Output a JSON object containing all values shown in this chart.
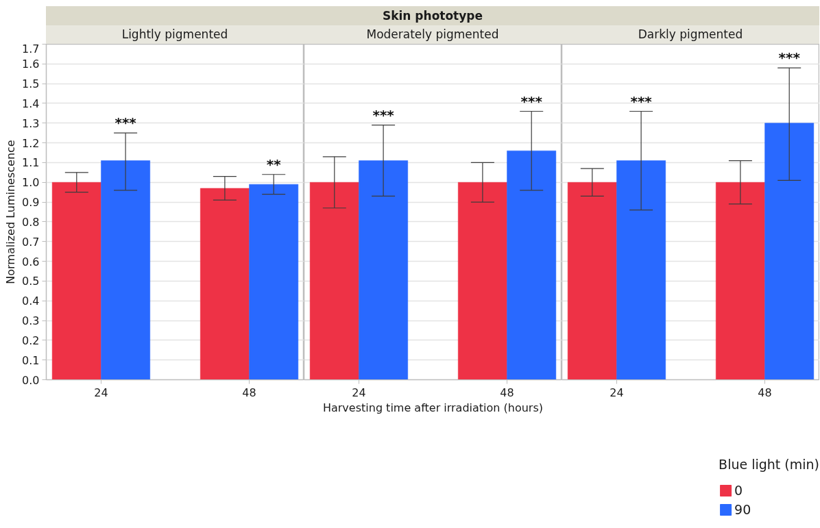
{
  "chart_data": [
    {
      "type": "bar",
      "subtitle": "Lightly pigmented",
      "ylabel": "Normalized Luminescence",
      "categories": [
        "24",
        "48"
      ],
      "series": [
        {
          "color": "#ee3246",
          "values": [
            1.0,
            0.97
          ],
          "errors": [
            [
              0.95,
              1.05
            ],
            [
              0.91,
              1.03
            ]
          ]
        },
        {
          "color": "#2969ff",
          "values": [
            1.11,
            0.99
          ],
          "errors": [
            [
              0.96,
              1.25
            ],
            [
              0.94,
              1.04
            ]
          ]
        }
      ],
      "ylim": [
        0,
        1.7
      ],
      "yticks": [
        {
          "value": 0,
          "label": "0.0"
        },
        0.1,
        0.2,
        0.3,
        0.4,
        0.5,
        0.6,
        0.7,
        0.8,
        0.9,
        {
          "value": 1,
          "label": "1.0"
        },
        1.1,
        1.2,
        1.3,
        1.4,
        1.5,
        1.6,
        1.7
      ],
      "grid": "y",
      "annotations": [
        "***",
        "**"
      ]
    },
    {
      "type": "bar",
      "title": "Skin phototype",
      "subtitle": "Moderately pigmented",
      "xlabel": "Harvesting time after irradiation (hours)",
      "categories": [
        "24",
        "48"
      ],
      "series": [
        {
          "color": "#ee3246",
          "values": [
            1.0,
            1.0
          ],
          "errors": [
            [
              0.87,
              1.13
            ],
            [
              0.9,
              1.1
            ]
          ]
        },
        {
          "color": "#2969ff",
          "values": [
            1.11,
            1.16
          ],
          "errors": [
            [
              0.93,
              1.29
            ],
            [
              0.96,
              1.36
            ]
          ]
        }
      ],
      "ylim": [
        0,
        1.7
      ],
      "yticks": [
        0,
        0.1,
        0.2,
        0.3,
        0.4,
        0.5,
        0.6,
        0.7,
        0.8,
        0.9,
        1,
        1.1,
        1.2,
        1.3,
        1.4,
        1.5,
        1.6,
        1.7
      ],
      "grid": "y",
      "tick_labels": "x",
      "annotations": [
        "***",
        "***"
      ]
    },
    {
      "type": "bar",
      "subtitle": "Darkly pigmented",
      "categories": [
        "24",
        "48"
      ],
      "series": [
        {
          "name": "0",
          "color": "#ee3246",
          "values": [
            1.0,
            1.0
          ],
          "errors": [
            [
              0.93,
              1.07
            ],
            [
              0.89,
              1.11
            ]
          ]
        },
        {
          "name": "90",
          "color": "#2969ff",
          "values": [
            1.11,
            1.3
          ],
          "errors": [
            [
              0.86,
              1.36
            ],
            [
              1.01,
              1.58
            ]
          ]
        }
      ],
      "ylim": [
        0,
        1.7
      ],
      "yticks": [
        0,
        0.1,
        0.2,
        0.3,
        0.4,
        0.5,
        0.6,
        0.7,
        0.8,
        0.9,
        1,
        1.1,
        1.2,
        1.3,
        1.4,
        1.5,
        1.6,
        1.7
      ],
      "grid": "y",
      "tick_labels": "x",
      "legend": "bottom right",
      "legend_title": "Blue light (min)",
      "annotations": [
        "***",
        "***"
      ]
    }
  ]
}
